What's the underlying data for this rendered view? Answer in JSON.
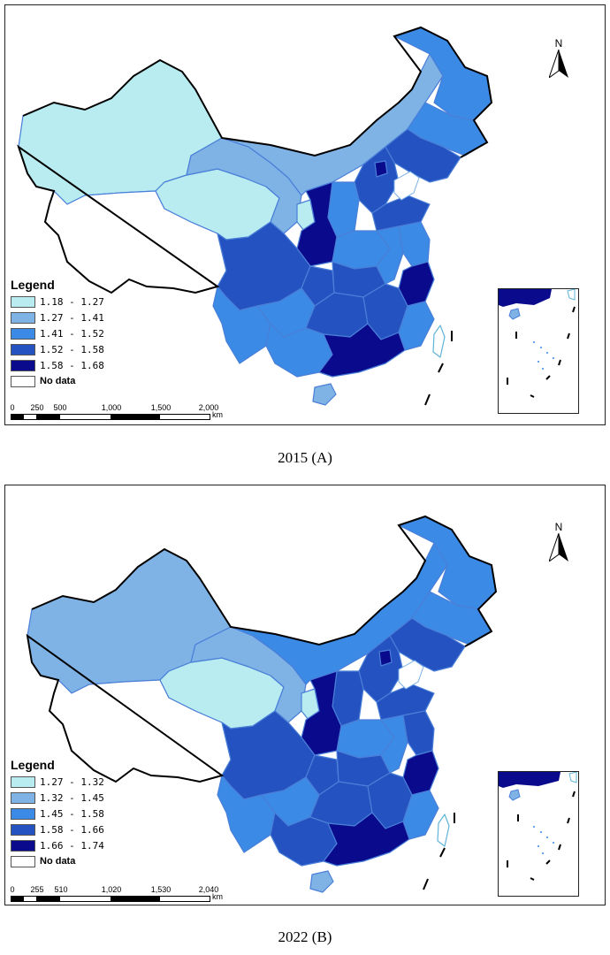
{
  "panels": [
    {
      "caption": "2015 (A)",
      "legend": {
        "title": "Legend",
        "classes": [
          {
            "label": "1.18 - 1.27",
            "color": "#b8ecf0"
          },
          {
            "label": "1.27 - 1.41",
            "color": "#7fb3e6"
          },
          {
            "label": "1.41 - 1.52",
            "color": "#3a8ae6"
          },
          {
            "label": "1.52 - 1.58",
            "color": "#2452c0"
          },
          {
            "label": "1.58 - 1.68",
            "color": "#0a0a8c"
          }
        ],
        "nodata": {
          "label": "No data",
          "color": "#ffffff"
        }
      },
      "scalebar": {
        "ticks": [
          "0",
          "250",
          "500",
          "1,000",
          "1,500",
          "2,000"
        ],
        "unit": "km"
      },
      "north_label": "N"
    },
    {
      "caption": "2022 (B)",
      "legend": {
        "title": "Legend",
        "classes": [
          {
            "label": "1.27 - 1.32",
            "color": "#b8ecf0"
          },
          {
            "label": "1.32 - 1.45",
            "color": "#7fb3e6"
          },
          {
            "label": "1.45 - 1.58",
            "color": "#3a8ae6"
          },
          {
            "label": "1.58 - 1.66",
            "color": "#2452c0"
          },
          {
            "label": "1.66 - 1.74",
            "color": "#0a0a8c"
          }
        ],
        "nodata": {
          "label": "No data",
          "color": "#ffffff"
        }
      },
      "scalebar": {
        "ticks": [
          "0",
          "255",
          "510",
          "1,020",
          "1,530",
          "2,040"
        ],
        "unit": "km"
      },
      "north_label": "N"
    }
  ]
}
